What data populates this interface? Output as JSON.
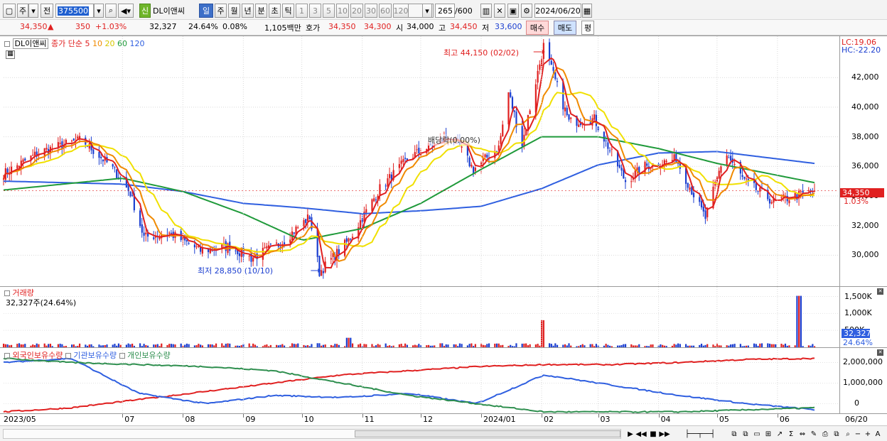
{
  "toolbar": {
    "type_label": "주",
    "prev_label": "전",
    "stock_code": "375500",
    "badge": "신",
    "stock_name": "DL이앤씨",
    "periods": [
      "일",
      "주",
      "월",
      "년",
      "분",
      "초",
      "틱"
    ],
    "active_period": "일",
    "intervals": [
      "1",
      "3",
      "5",
      "10",
      "20",
      "30",
      "60",
      "120"
    ],
    "count_display": "265",
    "count_total": "/600",
    "date": "2024/06/20"
  },
  "info": {
    "price": "34,350",
    "change_arrow": "▲",
    "change": "350",
    "change_pct": "+1.03%",
    "volume": "32,327",
    "turnover": "24.64%",
    "ratio": "0.08%",
    "amount": "1,105백만",
    "quote_label": "호가",
    "ask": "34,350",
    "bid": "34,300",
    "open_label": "시",
    "open": "34,000",
    "high_label": "고",
    "high": "34,450",
    "low_label": "저",
    "low": "33,600",
    "buy_label": "매수",
    "sell_label": "매도",
    "avg_label": "평"
  },
  "price_legend": {
    "name": "DL이앤씨",
    "series_title": "종가 단순",
    "ma_labels": [
      "5",
      "10",
      "20",
      "60",
      "120"
    ]
  },
  "annotations": {
    "high_note": "최고 44,150 (02/02)",
    "low_note": "최저 28,850 (10/10)",
    "ex_div_note": "배당락(0.00%)",
    "lc": "LC:19.06",
    "hc": "HC:-22.20",
    "price_tag": "34,350",
    "pct_tag": "1.03%",
    "vol_tag": "32,327",
    "vol_pct_tag": "24.64%"
  },
  "volume_legend": {
    "title": "거래량",
    "value": "32,327주(24.64%)"
  },
  "ownership_legend": {
    "foreign": "외국인보유수량",
    "institution": "기관보유수량",
    "individual": "개인보유수량"
  },
  "x_labels": [
    "2023/05",
    "07",
    "08",
    "09",
    "10",
    "11",
    "12",
    "2024/01",
    "02",
    "03",
    "04",
    "05",
    "06",
    "06/20"
  ],
  "colors": {
    "up": "#e02020",
    "down": "#1c3fd0",
    "ma5": "#e02020",
    "ma10": "#f08a00",
    "ma20": "#f0e000",
    "ma60": "#1f9a3a",
    "ma120": "#2f5fe0",
    "foreign": "#e02020",
    "institution": "#2f5fe0",
    "individual": "#2f8f4f"
  },
  "chart_data": [
    {
      "type": "candlestick",
      "title": "DL이앤씨 daily",
      "y_ticks": [
        30000,
        32000,
        34000,
        36000,
        38000,
        40000,
        42000
      ],
      "ylim": [
        28000,
        44600
      ],
      "x_range": [
        "2023/05",
        "2024/06/20"
      ],
      "close_path": [
        {
          "d": "2023/05",
          "v": 35500
        },
        {
          "d": "2023/05/20",
          "v": 37000
        },
        {
          "d": "2023/06/10",
          "v": 37800
        },
        {
          "d": "2023/06/25",
          "v": 36000
        },
        {
          "d": "2023/07/05",
          "v": 34200
        },
        {
          "d": "2023/07/12",
          "v": 31200
        },
        {
          "d": "2023/07/25",
          "v": 31500
        },
        {
          "d": "2023/08/10",
          "v": 30300
        },
        {
          "d": "2023/08/25",
          "v": 30600
        },
        {
          "d": "2023/09/05",
          "v": 29800
        },
        {
          "d": "2023/09/20",
          "v": 30800
        },
        {
          "d": "2023/10/05",
          "v": 32600
        },
        {
          "d": "2023/10/10",
          "v": 28850
        },
        {
          "d": "2023/10/25",
          "v": 31000
        },
        {
          "d": "2023/11/10",
          "v": 34500
        },
        {
          "d": "2023/11/25",
          "v": 36600
        },
        {
          "d": "2023/12/15",
          "v": 38000
        },
        {
          "d": "2023/12/20",
          "v": 37500
        },
        {
          "d": "2023/12/28",
          "v": 35800
        },
        {
          "d": "2024/01/10",
          "v": 37300
        },
        {
          "d": "2024/01/15",
          "v": 41000
        },
        {
          "d": "2024/01/22",
          "v": 37500
        },
        {
          "d": "2024/02/02",
          "v": 44150
        },
        {
          "d": "2024/02/15",
          "v": 39000
        },
        {
          "d": "2024/02/28",
          "v": 39200
        },
        {
          "d": "2024/03/15",
          "v": 35000
        },
        {
          "d": "2024/03/25",
          "v": 36000
        },
        {
          "d": "2024/04/10",
          "v": 36500
        },
        {
          "d": "2024/04/25",
          "v": 32500
        },
        {
          "d": "2024/05/05",
          "v": 37000
        },
        {
          "d": "2024/05/15",
          "v": 35000
        },
        {
          "d": "2024/05/30",
          "v": 33600
        },
        {
          "d": "2024/06/20",
          "v": 34350
        }
      ],
      "ma60_path": [
        {
          "d": "2023/05",
          "v": 34400
        },
        {
          "d": "2023/07",
          "v": 35200
        },
        {
          "d": "2023/08",
          "v": 34300
        },
        {
          "d": "2023/09",
          "v": 32800
        },
        {
          "d": "2023/10",
          "v": 31000
        },
        {
          "d": "2023/11",
          "v": 31800
        },
        {
          "d": "2023/12",
          "v": 33500
        },
        {
          "d": "2024/01",
          "v": 35800
        },
        {
          "d": "2024/02",
          "v": 38000
        },
        {
          "d": "2024/03",
          "v": 38000
        },
        {
          "d": "2024/04",
          "v": 37200
        },
        {
          "d": "2024/05",
          "v": 36200
        },
        {
          "d": "2024/06/20",
          "v": 34900
        }
      ],
      "ma120_path": [
        {
          "d": "2023/05",
          "v": 35000
        },
        {
          "d": "2023/07",
          "v": 34800
        },
        {
          "d": "2023/08",
          "v": 34300
        },
        {
          "d": "2023/09",
          "v": 33500
        },
        {
          "d": "2023/10",
          "v": 33200
        },
        {
          "d": "2023/11",
          "v": 32800
        },
        {
          "d": "2023/12",
          "v": 33000
        },
        {
          "d": "2024/01",
          "v": 33300
        },
        {
          "d": "2024/02",
          "v": 34500
        },
        {
          "d": "2024/03",
          "v": 36100
        },
        {
          "d": "2024/04",
          "v": 36900
        },
        {
          "d": "2024/05",
          "v": 37000
        },
        {
          "d": "2024/06/20",
          "v": 36200
        }
      ]
    },
    {
      "type": "bar",
      "title": "거래량",
      "y_ticks": [
        500000,
        1000000,
        1500000
      ],
      "y_tick_labels": [
        "500K",
        "1,000K",
        "1,500K"
      ],
      "ylim": [
        0,
        1700000
      ],
      "spikes": [
        {
          "d": "2023/10/25",
          "v": 280000
        },
        {
          "d": "2024/02/02",
          "v": 800000
        },
        {
          "d": "2024/06/12",
          "v": 1520000
        }
      ],
      "last": 32327
    },
    {
      "type": "line",
      "title": "보유수량",
      "y_ticks": [
        0,
        1000000,
        2000000
      ],
      "y_tick_labels": [
        "0",
        "1,000,000",
        "2,000,000"
      ],
      "ylim": [
        -400000,
        2500000
      ],
      "series": [
        {
          "name": "외국인보유수량",
          "values": [
            -400000,
            -200000,
            200000,
            600000,
            1000000,
            1400000,
            1600000,
            1800000,
            1900000,
            1900000,
            2000000,
            2150000,
            2200000
          ]
        },
        {
          "name": "기관보유수량",
          "values": [
            2000000,
            2200000,
            500000,
            0,
            400000,
            300000,
            500000,
            0,
            1400000,
            900000,
            400000,
            0,
            -300000
          ]
        },
        {
          "name": "개인보유수량",
          "values": [
            2200000,
            2000000,
            1900000,
            1800000,
            1600000,
            1000000,
            400000,
            0,
            -400000,
            -400000,
            -400000,
            -300000,
            -200000
          ]
        }
      ]
    }
  ]
}
